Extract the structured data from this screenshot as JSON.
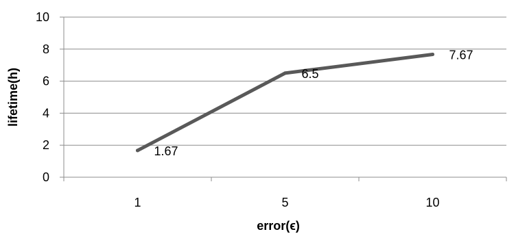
{
  "chart_data": {
    "type": "line",
    "title": "",
    "xlabel": "error(ϵ)",
    "ylabel": "lifetime(h)",
    "categories": [
      "1",
      "5",
      "10"
    ],
    "series": [
      {
        "values": [
          1.67,
          6.5,
          7.67
        ],
        "data_labels": [
          "1.67",
          "6.5",
          "7.67"
        ]
      }
    ],
    "ylim": [
      0,
      10
    ],
    "yticks": [
      0,
      2,
      4,
      6,
      8,
      10
    ],
    "grid": "horizontal",
    "legend": "none",
    "colors": {
      "line": "#595959",
      "grid": "#8c8c8c",
      "axis": "#8c8c8c"
    }
  }
}
